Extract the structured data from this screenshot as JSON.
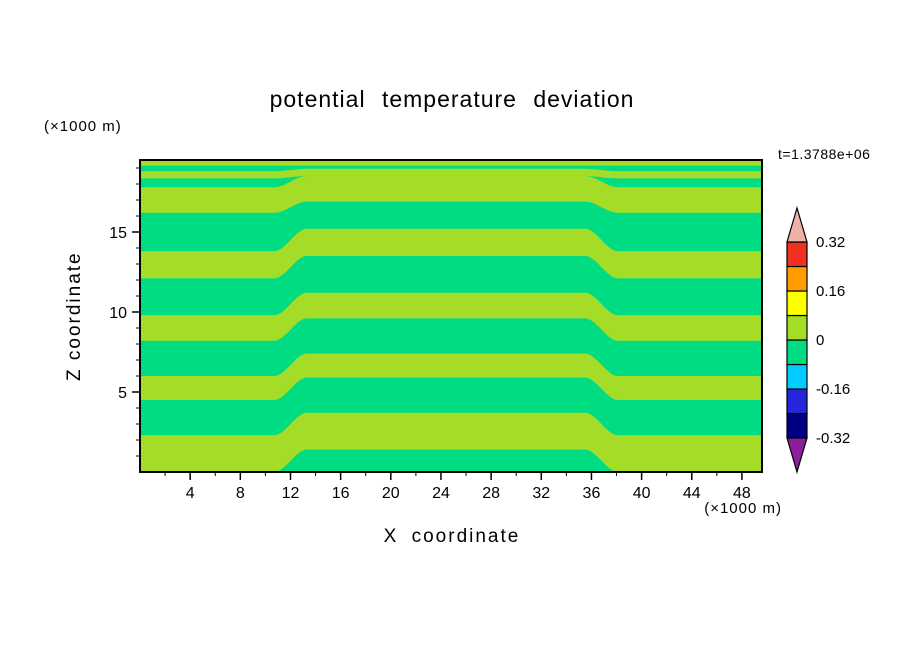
{
  "chart_data": {
    "type": "heatmap",
    "title": "potential temperature deviation",
    "xlabel": "X coordinate",
    "ylabel": "Z coordinate",
    "x_units_label": "(×1000 m)",
    "y_units_label": "(×1000 m)",
    "time_label": "t=1.3788e+06",
    "xlim": [
      0,
      49.6
    ],
    "ylim": [
      0,
      19.5
    ],
    "x_ticks": [
      4,
      8,
      12,
      16,
      20,
      24,
      28,
      32,
      36,
      40,
      44,
      48
    ],
    "x_minor_step": 2,
    "y_ticks": [
      5,
      10,
      15
    ],
    "y_minor_step": 1,
    "grid": false,
    "colorbar": {
      "position": "right",
      "labels": [
        "0.32",
        "0.16",
        "0",
        "-0.16",
        "-0.32"
      ],
      "levels": [
        -0.32,
        -0.24,
        -0.16,
        -0.08,
        0,
        0.08,
        0.16,
        0.24,
        0.32
      ],
      "colors_bottom_to_top": [
        "#000082",
        "#2626DD",
        "#00CCFF",
        "#00DC82",
        "#A4DC28",
        "#FFFF00",
        "#FF9C00",
        "#F03020"
      ],
      "over_color": "#EFB0AA",
      "under_color": "#8B1F9B"
    },
    "field": {
      "description": "Alternating horizontal stripes of small positive/negative potential temperature deviation; stripes step upward by ~1.4 km between x=12 and x=37, amplitude tapering toward the model top.",
      "background_value_range": [
        -0.08,
        0
      ],
      "background_color": "#00DC82",
      "band_value_range": [
        0,
        0.08
      ],
      "band_color": "#A4DC28",
      "bands_z": [
        [
          0,
          2.3
        ],
        [
          4.5,
          6.0
        ],
        [
          8.2,
          9.8
        ],
        [
          12.1,
          13.8
        ],
        [
          16.2,
          17.8
        ],
        [
          18.35,
          18.8
        ],
        [
          19.15,
          19.5
        ]
      ],
      "displacement": {
        "amplitude": 1.4,
        "rise_center": 12.0,
        "fall_center": 36.8,
        "half_width": 1.3,
        "taper_start_z": 15,
        "taper_end_z": 19
      }
    }
  }
}
